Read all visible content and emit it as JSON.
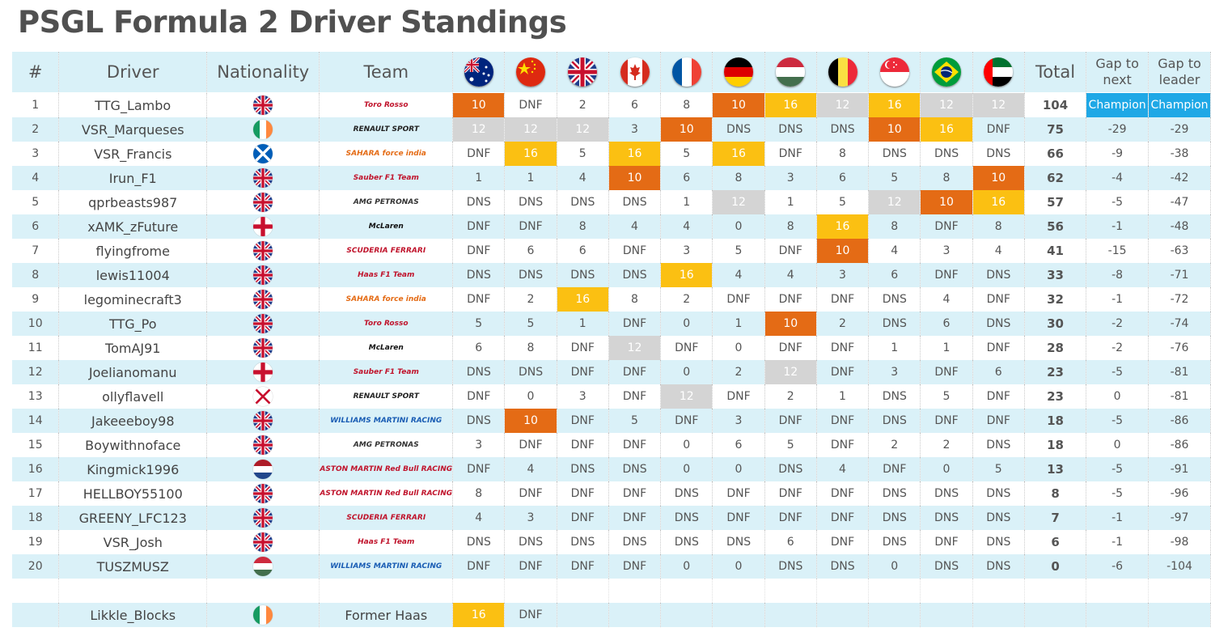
{
  "title": "PSGL Formula 2 Driver Standings",
  "headers": {
    "pos": "#",
    "driver": "Driver",
    "nationality": "Nationality",
    "team": "Team",
    "total": "Total",
    "gap_next": "Gap to next",
    "gap_leader": "Gap to leader"
  },
  "races": [
    "australia-flag-icon",
    "china-flag-icon",
    "uk-flag-icon",
    "canada-flag-icon",
    "france-flag-icon",
    "germany-flag-icon",
    "hungary-flag-icon",
    "belgium-flag-icon",
    "singapore-flag-icon",
    "brazil-flag-icon",
    "uae-flag-icon"
  ],
  "colors": {
    "orange": "#e46b15",
    "yellow": "#fbc012",
    "grey": "#d4d4d4",
    "champion": "#1fa8e6",
    "row_alt": "#daf1f8"
  },
  "drivers": [
    {
      "pos": "1",
      "name": "TTG_Lambo",
      "nat": "uk",
      "team": "toro-rosso",
      "results": [
        "10",
        "DNF",
        "2",
        "6",
        "8",
        "10",
        "16",
        "12",
        "16",
        "12",
        "12"
      ],
      "hl": [
        "o",
        "",
        "",
        "",
        "",
        "o",
        "y",
        "g",
        "y",
        "g",
        "g"
      ],
      "total": "104",
      "gap_next": "Champion",
      "gap_leader": "Champion"
    },
    {
      "pos": "2",
      "name": "VSR_Marqueses",
      "nat": "ireland",
      "team": "renault",
      "results": [
        "12",
        "12",
        "12",
        "3",
        "10",
        "DNS",
        "DNS",
        "DNS",
        "10",
        "16",
        "DNF"
      ],
      "hl": [
        "g",
        "g",
        "g",
        "",
        "o",
        "",
        "",
        "",
        "o",
        "y",
        ""
      ],
      "total": "75",
      "gap_next": "-29",
      "gap_leader": "-29"
    },
    {
      "pos": "3",
      "name": "VSR_Francis",
      "nat": "scotland",
      "team": "force-india",
      "results": [
        "DNF",
        "16",
        "5",
        "16",
        "5",
        "16",
        "DNF",
        "8",
        "DNS",
        "DNS",
        "DNS"
      ],
      "hl": [
        "",
        "y",
        "",
        "y",
        "",
        "y",
        "",
        "",
        "",
        "",
        ""
      ],
      "total": "66",
      "gap_next": "-9",
      "gap_leader": "-38"
    },
    {
      "pos": "4",
      "name": "Irun_F1",
      "nat": "uk",
      "team": "sauber",
      "results": [
        "1",
        "1",
        "4",
        "10",
        "6",
        "8",
        "3",
        "6",
        "5",
        "8",
        "10"
      ],
      "hl": [
        "",
        "",
        "",
        "o",
        "",
        "",
        "",
        "",
        "",
        "",
        "o"
      ],
      "total": "62",
      "gap_next": "-4",
      "gap_leader": "-42"
    },
    {
      "pos": "5",
      "name": "qprbeasts987",
      "nat": "uk",
      "team": "mercedes",
      "results": [
        "DNS",
        "DNS",
        "DNS",
        "DNS",
        "1",
        "12",
        "1",
        "5",
        "12",
        "10",
        "16"
      ],
      "hl": [
        "",
        "",
        "",
        "",
        "",
        "g",
        "",
        "",
        "g",
        "o",
        "y"
      ],
      "total": "57",
      "gap_next": "-5",
      "gap_leader": "-47"
    },
    {
      "pos": "6",
      "name": "xAMK_zFuture",
      "nat": "n-ireland",
      "team": "mclaren",
      "results": [
        "DNF",
        "DNF",
        "8",
        "4",
        "4",
        "0",
        "8",
        "16",
        "8",
        "DNF",
        "8"
      ],
      "hl": [
        "",
        "",
        "",
        "",
        "",
        "",
        "",
        "y",
        "",
        "",
        ""
      ],
      "total": "56",
      "gap_next": "-1",
      "gap_leader": "-48"
    },
    {
      "pos": "7",
      "name": "flyingfrome",
      "nat": "uk",
      "team": "ferrari",
      "results": [
        "DNF",
        "6",
        "6",
        "DNF",
        "3",
        "5",
        "DNF",
        "10",
        "4",
        "3",
        "4"
      ],
      "hl": [
        "",
        "",
        "",
        "",
        "",
        "",
        "",
        "o",
        "",
        "",
        ""
      ],
      "total": "41",
      "gap_next": "-15",
      "gap_leader": "-63"
    },
    {
      "pos": "8",
      "name": "lewis11004",
      "nat": "uk",
      "team": "haas",
      "results": [
        "DNS",
        "DNS",
        "DNS",
        "DNS",
        "16",
        "4",
        "4",
        "3",
        "6",
        "DNF",
        "DNS"
      ],
      "hl": [
        "",
        "",
        "",
        "",
        "y",
        "",
        "",
        "",
        "",
        "",
        ""
      ],
      "total": "33",
      "gap_next": "-8",
      "gap_leader": "-71"
    },
    {
      "pos": "9",
      "name": "legominecraft3",
      "nat": "uk",
      "team": "force-india",
      "results": [
        "DNF",
        "2",
        "16",
        "8",
        "2",
        "DNF",
        "DNF",
        "DNF",
        "DNS",
        "4",
        "DNF"
      ],
      "hl": [
        "",
        "",
        "y",
        "",
        "",
        "",
        "",
        "",
        "",
        "",
        ""
      ],
      "total": "32",
      "gap_next": "-1",
      "gap_leader": "-72"
    },
    {
      "pos": "10",
      "name": "TTG_Po",
      "nat": "uk",
      "team": "toro-rosso",
      "results": [
        "5",
        "5",
        "1",
        "DNF",
        "0",
        "1",
        "10",
        "2",
        "DNS",
        "6",
        "DNS"
      ],
      "hl": [
        "",
        "",
        "",
        "",
        "",
        "",
        "o",
        "",
        "",
        "",
        ""
      ],
      "total": "30",
      "gap_next": "-2",
      "gap_leader": "-74"
    },
    {
      "pos": "11",
      "name": "TomAJ91",
      "nat": "uk",
      "team": "mclaren",
      "results": [
        "6",
        "8",
        "DNF",
        "12",
        "DNF",
        "0",
        "DNF",
        "DNF",
        "1",
        "1",
        "DNF"
      ],
      "hl": [
        "",
        "",
        "",
        "g",
        "",
        "",
        "",
        "",
        "",
        "",
        ""
      ],
      "total": "28",
      "gap_next": "-2",
      "gap_leader": "-76"
    },
    {
      "pos": "12",
      "name": "Joelianomanu",
      "nat": "n-ireland",
      "team": "sauber",
      "results": [
        "DNS",
        "DNS",
        "DNF",
        "DNF",
        "0",
        "2",
        "12",
        "DNF",
        "3",
        "DNF",
        "6"
      ],
      "hl": [
        "",
        "",
        "",
        "",
        "",
        "",
        "g",
        "",
        "",
        "",
        ""
      ],
      "total": "23",
      "gap_next": "-5",
      "gap_leader": "-81"
    },
    {
      "pos": "13",
      "name": "ollyflavell",
      "nat": "jersey",
      "team": "renault",
      "results": [
        "DNF",
        "0",
        "3",
        "DNF",
        "12",
        "DNF",
        "2",
        "1",
        "DNS",
        "5",
        "DNF"
      ],
      "hl": [
        "",
        "",
        "",
        "",
        "g",
        "",
        "",
        "",
        "",
        "",
        ""
      ],
      "total": "23",
      "gap_next": "0",
      "gap_leader": "-81"
    },
    {
      "pos": "14",
      "name": "Jakeeeboy98",
      "nat": "uk",
      "team": "williams",
      "results": [
        "DNS",
        "10",
        "DNF",
        "5",
        "DNF",
        "3",
        "DNF",
        "DNF",
        "DNS",
        "DNF",
        "DNF"
      ],
      "hl": [
        "",
        "o",
        "",
        "",
        "",
        "",
        "",
        "",
        "",
        "",
        ""
      ],
      "total": "18",
      "gap_next": "-5",
      "gap_leader": "-86"
    },
    {
      "pos": "15",
      "name": "Boywithnoface",
      "nat": "uk",
      "team": "mercedes",
      "results": [
        "3",
        "DNF",
        "DNF",
        "DNF",
        "0",
        "6",
        "5",
        "DNF",
        "2",
        "2",
        "DNS"
      ],
      "hl": [
        "",
        "",
        "",
        "",
        "",
        "",
        "",
        "",
        "",
        "",
        ""
      ],
      "total": "18",
      "gap_next": "0",
      "gap_leader": "-86"
    },
    {
      "pos": "16",
      "name": "Kingmick1996",
      "nat": "netherlands",
      "team": "red-bull",
      "results": [
        "DNF",
        "4",
        "DNS",
        "DNS",
        "0",
        "0",
        "DNS",
        "4",
        "DNF",
        "0",
        "5"
      ],
      "hl": [
        "",
        "",
        "",
        "",
        "",
        "",
        "",
        "",
        "",
        "",
        ""
      ],
      "total": "13",
      "gap_next": "-5",
      "gap_leader": "-91"
    },
    {
      "pos": "17",
      "name": "HELLBOY55100",
      "nat": "uk",
      "team": "red-bull",
      "results": [
        "8",
        "DNF",
        "DNF",
        "DNF",
        "DNS",
        "DNF",
        "DNF",
        "DNF",
        "DNS",
        "DNS",
        "DNS"
      ],
      "hl": [
        "",
        "",
        "",
        "",
        "",
        "",
        "",
        "",
        "",
        "",
        ""
      ],
      "total": "8",
      "gap_next": "-5",
      "gap_leader": "-96"
    },
    {
      "pos": "18",
      "name": "GREENY_LFC123",
      "nat": "uk",
      "team": "ferrari",
      "results": [
        "4",
        "3",
        "DNF",
        "DNF",
        "DNS",
        "DNF",
        "DNF",
        "DNF",
        "DNS",
        "DNS",
        "DNS"
      ],
      "hl": [
        "",
        "",
        "",
        "",
        "",
        "",
        "",
        "",
        "",
        "",
        ""
      ],
      "total": "7",
      "gap_next": "-1",
      "gap_leader": "-97"
    },
    {
      "pos": "19",
      "name": "VSR_Josh",
      "nat": "uk",
      "team": "haas",
      "results": [
        "DNS",
        "DNS",
        "DNS",
        "DNS",
        "DNS",
        "DNS",
        "6",
        "DNF",
        "DNS",
        "DNF",
        "DNS"
      ],
      "hl": [
        "",
        "",
        "",
        "",
        "",
        "",
        "",
        "",
        "",
        "",
        ""
      ],
      "total": "6",
      "gap_next": "-1",
      "gap_leader": "-98"
    },
    {
      "pos": "20",
      "name": "TUSZMUSZ",
      "nat": "hungary",
      "team": "williams",
      "results": [
        "DNF",
        "DNF",
        "DNF",
        "DNF",
        "0",
        "0",
        "DNS",
        "DNS",
        "0",
        "DNS",
        "DNS"
      ],
      "hl": [
        "",
        "",
        "",
        "",
        "",
        "",
        "",
        "",
        "",
        "",
        ""
      ],
      "total": "0",
      "gap_next": "-6",
      "gap_leader": "-104"
    }
  ],
  "former": {
    "name": "Likkle_Blocks",
    "nat": "ireland",
    "team_text": "Former Haas",
    "results": [
      "16",
      "DNF"
    ],
    "hl": [
      "y",
      ""
    ]
  },
  "team_logos": {
    "toro-rosso": {
      "text": "Toro Rosso",
      "color": "#c0142c"
    },
    "renault": {
      "text": "RENAULT SPORT",
      "color": "#222"
    },
    "force-india": {
      "text": "SAHARA force india",
      "color": "#e46b15"
    },
    "sauber": {
      "text": "Sauber F1 Team",
      "color": "#c0142c"
    },
    "mercedes": {
      "text": "AMG PETRONAS",
      "color": "#333"
    },
    "mclaren": {
      "text": "McLaren",
      "color": "#111"
    },
    "ferrari": {
      "text": "SCUDERIA FERRARI",
      "color": "#c0142c"
    },
    "haas": {
      "text": "Haas F1 Team",
      "color": "#c0142c"
    },
    "williams": {
      "text": "WILLIAMS MARTINI RACING",
      "color": "#1a5db4"
    },
    "red-bull": {
      "text": "ASTON MARTIN Red Bull RACING",
      "color": "#c0142c"
    }
  }
}
